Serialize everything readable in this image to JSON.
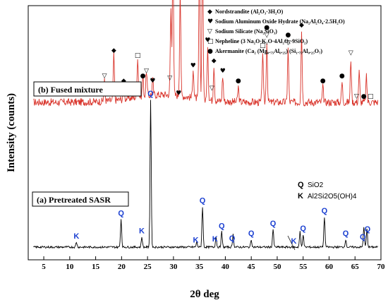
{
  "chart_data": {
    "type": "line",
    "xlabel": "2θ deg",
    "ylabel": "Intensity (counts)",
    "xlim": [
      2,
      70
    ],
    "xticks": [
      5,
      10,
      15,
      20,
      25,
      30,
      35,
      40,
      45,
      50,
      55,
      60,
      65,
      70
    ],
    "grid": false,
    "colors": {
      "fused": "#d9342b",
      "pretreated": "#000000",
      "peak_letters": "#1a3fd1"
    },
    "series": [
      {
        "name": "(b) Fused mixture",
        "baseline": 0.62,
        "peaks": [
          {
            "x": 16.7,
            "h": 0.08
          },
          {
            "x": 18.5,
            "h": 0.18
          },
          {
            "x": 20.4,
            "h": 0.06
          },
          {
            "x": 23.1,
            "h": 0.16
          },
          {
            "x": 24.1,
            "h": 0.08
          },
          {
            "x": 24.8,
            "h": 0.1
          },
          {
            "x": 26.0,
            "h": 0.06
          },
          {
            "x": 29.5,
            "h": 0.34
          },
          {
            "x": 29.9,
            "h": 0.58
          },
          {
            "x": 31.3,
            "h": 0.42
          },
          {
            "x": 33.8,
            "h": 0.12
          },
          {
            "x": 35.0,
            "h": 0.55
          },
          {
            "x": 35.6,
            "h": 0.64
          },
          {
            "x": 36.6,
            "h": 0.22
          },
          {
            "x": 37.8,
            "h": 0.14
          },
          {
            "x": 39.5,
            "h": 0.1
          },
          {
            "x": 42.5,
            "h": 0.06
          },
          {
            "x": 47.2,
            "h": 0.2
          },
          {
            "x": 48.0,
            "h": 0.24
          },
          {
            "x": 52.1,
            "h": 0.21
          },
          {
            "x": 54.7,
            "h": 0.28
          },
          {
            "x": 58.8,
            "h": 0.06
          },
          {
            "x": 62.5,
            "h": 0.08
          },
          {
            "x": 64.2,
            "h": 0.17
          },
          {
            "x": 65.8,
            "h": 0.12
          },
          {
            "x": 67.2,
            "h": 0.1
          }
        ]
      },
      {
        "name": "(a) Pretreated SASR",
        "baseline": 0.05,
        "peaks": [
          {
            "x": 11.3,
            "h": 0.02
          },
          {
            "x": 19.9,
            "h": 0.11
          },
          {
            "x": 23.9,
            "h": 0.04
          },
          {
            "x": 25.6,
            "h": 0.58
          },
          {
            "x": 34.5,
            "h": 0.02
          },
          {
            "x": 35.6,
            "h": 0.16
          },
          {
            "x": 38.2,
            "h": 0.04
          },
          {
            "x": 39.3,
            "h": 0.06
          },
          {
            "x": 41.5,
            "h": 0.05
          },
          {
            "x": 45.0,
            "h": 0.03
          },
          {
            "x": 49.2,
            "h": 0.07
          },
          {
            "x": 54.4,
            "h": 0.06
          },
          {
            "x": 55.0,
            "h": 0.05
          },
          {
            "x": 59.1,
            "h": 0.12
          },
          {
            "x": 63.2,
            "h": 0.03
          },
          {
            "x": 66.7,
            "h": 0.08
          },
          {
            "x": 67.3,
            "h": 0.07
          }
        ]
      }
    ],
    "markers_b": [
      {
        "x": 16.7,
        "sym": "▽"
      },
      {
        "x": 18.5,
        "sym": "◆"
      },
      {
        "x": 20.4,
        "sym": "◆"
      },
      {
        "x": 23.1,
        "sym": "□"
      },
      {
        "x": 24.1,
        "sym": "●"
      },
      {
        "x": 24.8,
        "sym": "▽"
      },
      {
        "x": 26.0,
        "sym": "♥"
      },
      {
        "x": 29.3,
        "sym": "▽"
      },
      {
        "x": 29.9,
        "sym": "□"
      },
      {
        "x": 31.0,
        "sym": "♥"
      },
      {
        "x": 31.3,
        "sym": "♥"
      },
      {
        "x": 33.8,
        "sym": "♥"
      },
      {
        "x": 35.0,
        "sym": "▽"
      },
      {
        "x": 35.7,
        "sym": "♥"
      },
      {
        "x": 36.6,
        "sym": "♥"
      },
      {
        "x": 37.4,
        "sym": "▽"
      },
      {
        "x": 37.8,
        "sym": "◆"
      },
      {
        "x": 39.5,
        "sym": "♥"
      },
      {
        "x": 42.5,
        "sym": "●"
      },
      {
        "x": 47.2,
        "sym": "□"
      },
      {
        "x": 48.0,
        "sym": "▽"
      },
      {
        "x": 48.0,
        "sym": "●"
      },
      {
        "x": 52.1,
        "sym": "▽"
      },
      {
        "x": 52.1,
        "sym": "●"
      },
      {
        "x": 54.7,
        "sym": "◆"
      },
      {
        "x": 58.8,
        "sym": "●"
      },
      {
        "x": 62.5,
        "sym": "●"
      },
      {
        "x": 64.2,
        "sym": "▽"
      },
      {
        "x": 65.3,
        "sym": "▽"
      },
      {
        "x": 66.7,
        "sym": "●"
      },
      {
        "x": 68.0,
        "sym": "□"
      }
    ],
    "markers_a": [
      {
        "x": 11.3,
        "sym": "K"
      },
      {
        "x": 19.9,
        "sym": "Q"
      },
      {
        "x": 23.9,
        "sym": "K"
      },
      {
        "x": 25.6,
        "sym": "Q"
      },
      {
        "x": 34.3,
        "sym": "K"
      },
      {
        "x": 35.6,
        "sym": "Q"
      },
      {
        "x": 38.0,
        "sym": "K"
      },
      {
        "x": 39.3,
        "sym": "Q"
      },
      {
        "x": 41.3,
        "sym": "Q"
      },
      {
        "x": 45.0,
        "sym": "Q"
      },
      {
        "x": 49.2,
        "sym": "Q"
      },
      {
        "x": 53.2,
        "sym": "K"
      },
      {
        "x": 55.0,
        "sym": "Q"
      },
      {
        "x": 59.1,
        "sym": "Q"
      },
      {
        "x": 63.2,
        "sym": "Q"
      },
      {
        "x": 66.5,
        "sym": "Q"
      },
      {
        "x": 67.4,
        "sym": "Q"
      }
    ],
    "legend_top": [
      {
        "sym": "◆",
        "label": "Nordstrandite (Al₂O₃·3H₂O)"
      },
      {
        "sym": "♥",
        "label": "Sodium Aluminum Oxide Hydrate (Na₂Al₂O₄·2.5H₂O)"
      },
      {
        "sym": "▽",
        "label": "Sodium Silicate (Na₂SiO₃)"
      },
      {
        "sym": "□",
        "label": "Nepheline (3 Na₂O·K₂O·4Al₂O₃·9SiO₂)"
      },
      {
        "sym": "●",
        "label": "Akermanite (Ca₂ (Mg₀.₇₅Al₀.₂₅) (Si₁.₇₅Al₀.₂₅O₇)"
      }
    ],
    "legend_qk": [
      {
        "sym": "Q",
        "label": "SiO2"
      },
      {
        "sym": "K",
        "label": "Al2Si2O5(OH)4"
      }
    ]
  }
}
